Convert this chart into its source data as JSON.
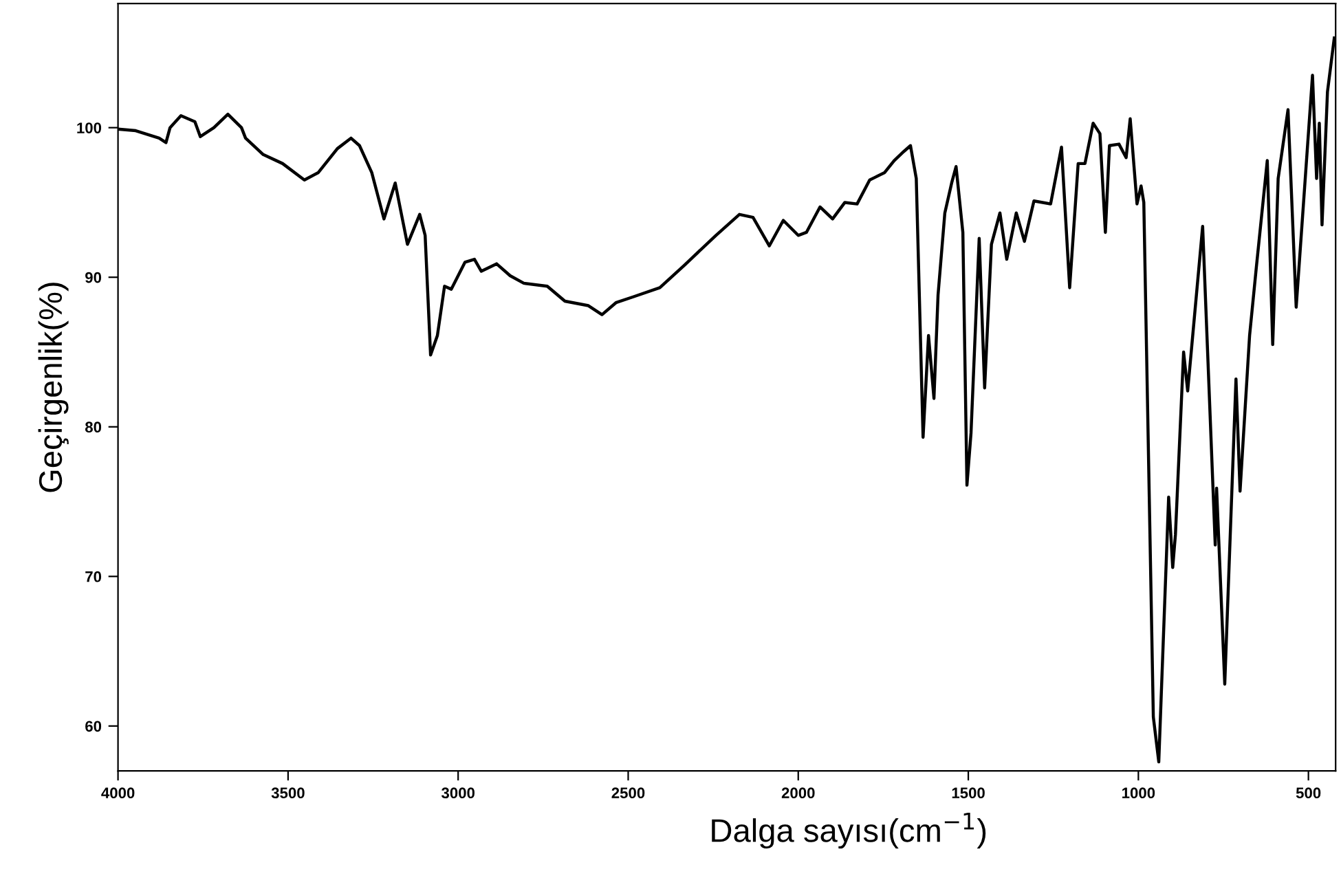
{
  "chart_data": {
    "type": "line",
    "xlabel": "Dalga sayısı(cm$^{−1}$)",
    "ylabel": "Geçirgenlik(%)",
    "xlim": [
      4000,
      420
    ],
    "xticks": [
      4000,
      3500,
      3000,
      2500,
      2000,
      1500,
      1000,
      500
    ],
    "ylim": [
      57,
      108.3
    ],
    "yticks": [
      100,
      90,
      80,
      70,
      60
    ],
    "grid": false,
    "legend": false,
    "marker": "none",
    "line_style": "solid",
    "series": [
      {
        "color": "#000000",
        "x": [
          4000,
          3948,
          3879,
          3859,
          3847,
          3815,
          3774,
          3758,
          3718,
          3677,
          3637,
          3625,
          3573,
          3516,
          3452,
          3411,
          3355,
          3315,
          3290,
          3254,
          3218,
          3185,
          3149,
          3113,
          3097,
          3081,
          3061,
          3040,
          3020,
          2980,
          2952,
          2932,
          2887,
          2847,
          2807,
          2738,
          2686,
          2617,
          2577,
          2536,
          2484,
          2407,
          2335,
          2242,
          2173,
          2133,
          2085,
          2044,
          2000,
          1976,
          1936,
          1899,
          1863,
          1827,
          1790,
          1746,
          1718,
          1690,
          1670,
          1653,
          1633,
          1617,
          1601,
          1589,
          1569,
          1549,
          1536,
          1516,
          1504,
          1492,
          1468,
          1452,
          1432,
          1407,
          1387,
          1359,
          1335,
          1307,
          1258,
          1226,
          1202,
          1177,
          1157,
          1133,
          1113,
          1097,
          1085,
          1057,
          1036,
          1024,
          1004,
          992,
          984,
          956,
          940,
          911,
          899,
          891,
          867,
          855,
          811,
          774,
          770,
          746,
          713,
          701,
          673,
          653,
          621,
          605,
          589,
          560,
          536,
          488,
          476,
          468,
          460,
          444,
          424
        ],
        "values": [
          99.9,
          99.8,
          99.3,
          99.0,
          100,
          100.8,
          100.4,
          99.4,
          100,
          100.9,
          100,
          99.3,
          98.2,
          97.6,
          96.5,
          97,
          98.6,
          99.3,
          98.8,
          97,
          93.9,
          96.3,
          92.2,
          94.2,
          92.8,
          84.8,
          86.1,
          89.4,
          89.2,
          91,
          91.2,
          90.4,
          90.9,
          90.1,
          89.6,
          89.4,
          88.4,
          88.1,
          87.5,
          88.3,
          88.7,
          89.3,
          90.8,
          92.8,
          94.2,
          94,
          92.1,
          93.8,
          92.8,
          93,
          94.7,
          93.9,
          95,
          94.9,
          96.5,
          97,
          97.8,
          98.4,
          98.8,
          96.6,
          79.3,
          86.1,
          81.9,
          88.8,
          94.3,
          96.3,
          97.4,
          93,
          76.1,
          79.6,
          92.6,
          82.6,
          92.2,
          94.3,
          91.2,
          94.3,
          92.4,
          95.1,
          94.9,
          98.7,
          89.3,
          97.6,
          97.6,
          100.3,
          99.6,
          93,
          98.8,
          98.9,
          98,
          100.6,
          94.9,
          96.1,
          95,
          60.6,
          57.6,
          75.3,
          70.6,
          72.8,
          85,
          82.4,
          93.4,
          72.1,
          75.9,
          62.8,
          83.2,
          75.7,
          86.1,
          90.7,
          97.8,
          85.5,
          96.6,
          101.2,
          88,
          103.5,
          96.6,
          100.3,
          93.5,
          102.4,
          106
        ]
      }
    ]
  }
}
